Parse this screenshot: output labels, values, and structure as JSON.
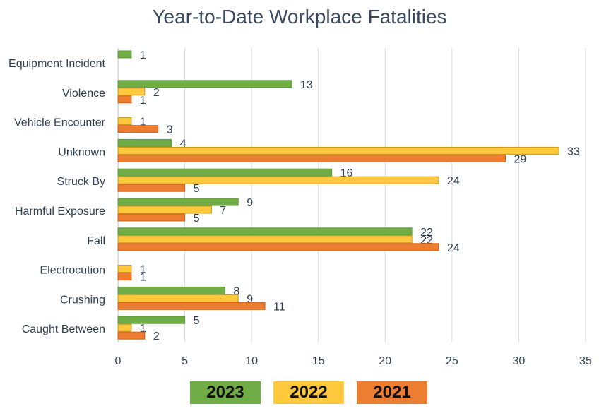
{
  "chart_data": {
    "type": "bar",
    "orientation": "horizontal",
    "title": "Year-to-Date Workplace Fatalities",
    "categories": [
      "Equipment Incident",
      "Violence",
      "Vehicle Encounter",
      "Unknown",
      "Struck By",
      "Harmful Exposure",
      "Fall",
      "Electrocution",
      "Crushing",
      "Caught Between"
    ],
    "series": [
      {
        "name": "2023",
        "color": "#70ad47",
        "values": [
          1,
          13,
          null,
          4,
          16,
          9,
          22,
          null,
          8,
          5
        ]
      },
      {
        "name": "2022",
        "color": "#ffc83d",
        "values": [
          null,
          2,
          1,
          33,
          24,
          7,
          22,
          1,
          9,
          1
        ]
      },
      {
        "name": "2021",
        "color": "#ed7d31",
        "values": [
          null,
          1,
          3,
          29,
          5,
          5,
          24,
          1,
          11,
          2
        ]
      }
    ],
    "xlim": [
      0,
      35
    ],
    "xticks": [
      0,
      5,
      10,
      15,
      20,
      25,
      30,
      35
    ],
    "grid": true,
    "legend_placement": "bottom"
  }
}
